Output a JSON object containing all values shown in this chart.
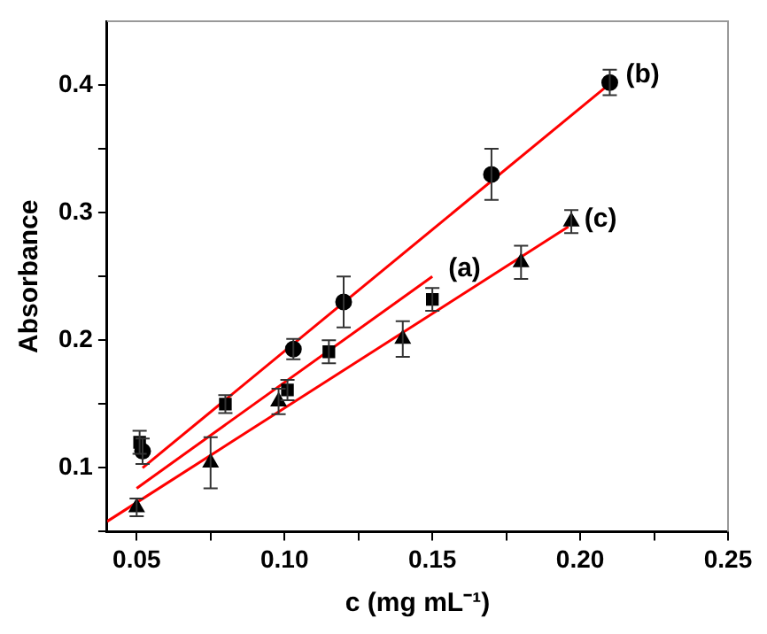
{
  "chart_data": {
    "type": "scatter",
    "xlabel": "c (mg mL⁻¹)",
    "ylabel": "Absorbance",
    "xlim": [
      0.04,
      0.25
    ],
    "ylim": [
      0.05,
      0.45
    ],
    "xticks": [
      0.05,
      {
        "value": 0.075,
        "label": null
      },
      "0.10",
      {
        "value": 0.125,
        "label": null
      },
      0.15,
      {
        "value": 0.175,
        "label": null
      },
      "0.20",
      {
        "value": 0.225,
        "label": null
      },
      0.25
    ],
    "yticks": [
      {
        "value": 0.05,
        "label": null
      },
      0.1,
      {
        "value": 0.15,
        "label": null
      },
      0.2,
      {
        "value": 0.25,
        "label": null
      },
      0.3,
      {
        "value": 0.35,
        "label": null
      },
      0.4
    ],
    "grid": false,
    "legend": false,
    "series": [
      {
        "marker": "square",
        "color": "#000000",
        "x": [
          0.051,
          0.08,
          0.101,
          0.115,
          0.15
        ],
        "values": [
          0.12,
          0.15,
          0.161,
          0.191,
          0.232
        ],
        "errors": [
          0.009,
          0.007,
          0.008,
          0.009,
          0.009
        ]
      },
      {
        "marker": "circle",
        "color": "#000000",
        "x": [
          0.052,
          0.103,
          0.12,
          0.17,
          0.21
        ],
        "values": [
          0.113,
          0.193,
          0.23,
          0.33,
          0.402
        ],
        "errors": [
          0.01,
          0.008,
          0.02,
          0.02,
          0.01
        ]
      },
      {
        "marker": "triangle",
        "color": "#000000",
        "x": [
          0.05,
          0.075,
          0.098,
          0.14,
          0.18,
          0.197
        ],
        "values": [
          0.069,
          0.104,
          0.152,
          0.201,
          0.261,
          0.293
        ],
        "errors": [
          0.007,
          0.02,
          0.01,
          0.014,
          0.013,
          0.009
        ]
      },
      {
        "type": "line",
        "marker": "none",
        "color": "#ff0000",
        "x": [
          0.05,
          0.15
        ],
        "values": [
          0.084,
          0.25
        ]
      },
      {
        "type": "line",
        "marker": "none",
        "color": "#ff0000",
        "x": [
          0.052,
          0.21
        ],
        "values": [
          0.1,
          0.401
        ]
      },
      {
        "type": "line",
        "marker": "none",
        "color": "#ff0000",
        "x": [
          0.04,
          0.196
        ],
        "values": [
          0.058,
          0.289
        ]
      }
    ],
    "annotations": [
      {
        "text": "(a)",
        "x": 0.15,
        "y": 0.25
      },
      {
        "text": "(b)",
        "x": 0.21,
        "y": 0.402
      },
      {
        "text": "(c)",
        "x": 0.196,
        "y": 0.289
      }
    ]
  }
}
